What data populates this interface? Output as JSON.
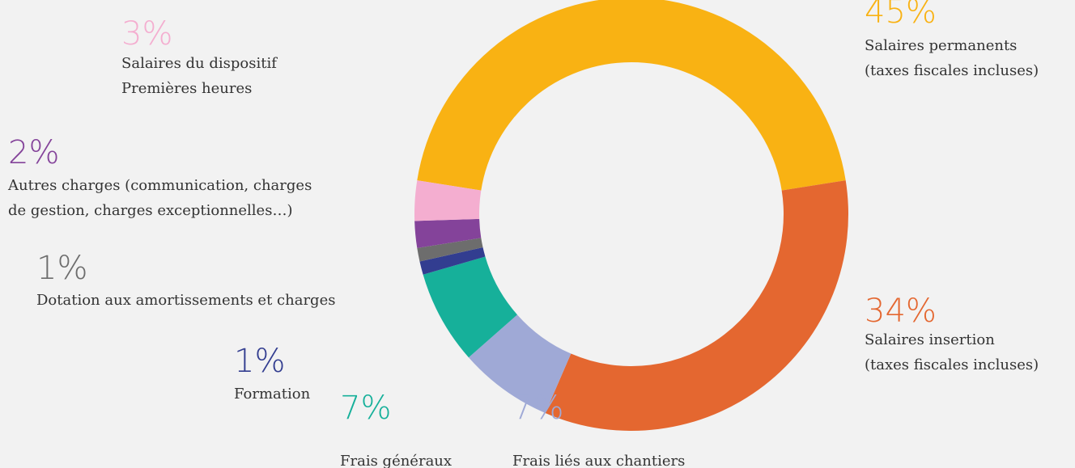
{
  "chart_data": {
    "type": "donut",
    "categories": [
      [
        "Salaires permanents",
        "(taxes fiscales incluses)"
      ],
      [
        "Salaires insertion",
        "(taxes fiscales incluses)"
      ],
      [
        "Frais liés aux chantiers"
      ],
      [
        "Frais généraux"
      ],
      [
        "Formation"
      ],
      [
        "Dotation aux amortissements et charges"
      ],
      [
        "Autres charges (communication, charges",
        "de gestion, charges exceptionnelles…)"
      ],
      [
        "Salaires du dispositif",
        "Premières heures"
      ]
    ],
    "values": [
      45,
      34,
      7,
      7,
      1,
      1,
      2,
      3
    ],
    "value_labels": [
      "45%",
      "34%",
      "7%",
      "7%",
      "1%",
      "1%",
      "2%",
      "3%"
    ],
    "colors": [
      "#f9b213",
      "#e46730",
      "#9fa9d6",
      "#16b09a",
      "#323d90",
      "#6d6d6d",
      "#84439a",
      "#f4aed0"
    ]
  }
}
